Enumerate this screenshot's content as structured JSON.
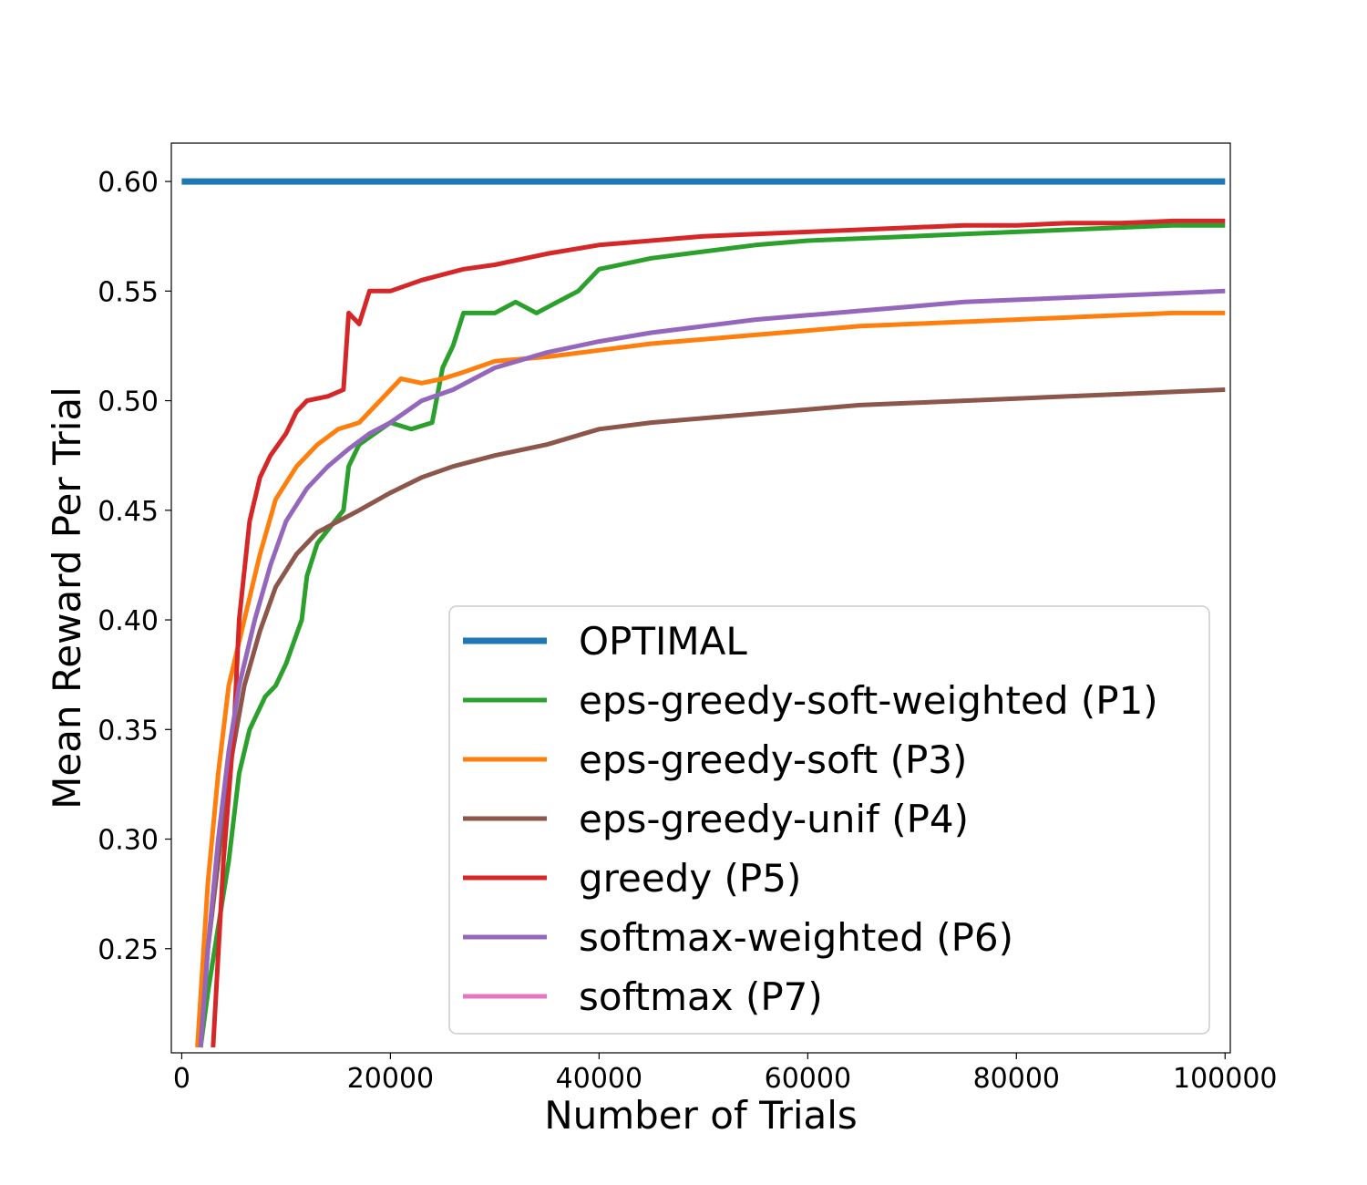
{
  "chart_data": {
    "type": "line",
    "title": "",
    "xlabel": "Number of Trials",
    "ylabel": "Mean Reward Per Trial",
    "xlim": [
      -1000,
      100500
    ],
    "ylim": [
      0.2025,
      0.6175
    ],
    "xticks": [
      0,
      20000,
      40000,
      60000,
      80000,
      100000
    ],
    "xtick_labels": [
      "0",
      "20000",
      "40000",
      "60000",
      "80000",
      "100000"
    ],
    "yticks": [
      0.25,
      0.3,
      0.35,
      0.4,
      0.45,
      0.5,
      0.55,
      0.6
    ],
    "ytick_labels": [
      "0.25",
      "0.30",
      "0.35",
      "0.40",
      "0.45",
      "0.50",
      "0.55",
      "0.60"
    ],
    "grid": false,
    "legend_position": "lower-right",
    "series": [
      {
        "name": "OPTIMAL",
        "color": "#1f77b4",
        "width": 7,
        "x": [
          0,
          100000
        ],
        "y": [
          0.6,
          0.6
        ]
      },
      {
        "name": "eps-greedy-soft-weighted (P1)",
        "color": "#2ca02c",
        "width": 5,
        "x": [
          1800,
          2500,
          3500,
          4500,
          5500,
          6500,
          8000,
          9000,
          10000,
          11500,
          12000,
          13000,
          15500,
          16000,
          17000,
          18500,
          20000,
          22000,
          24000,
          25000,
          26000,
          27000,
          28000,
          30000,
          32000,
          34000,
          36000,
          38000,
          39000,
          40000,
          45000,
          50000,
          55000,
          60000,
          65000,
          70000,
          75000,
          80000,
          85000,
          90000,
          95000,
          100000
        ],
        "y": [
          0.205,
          0.23,
          0.26,
          0.29,
          0.33,
          0.35,
          0.365,
          0.37,
          0.38,
          0.4,
          0.42,
          0.435,
          0.45,
          0.47,
          0.48,
          0.485,
          0.49,
          0.487,
          0.49,
          0.515,
          0.525,
          0.54,
          0.54,
          0.54,
          0.545,
          0.54,
          0.545,
          0.55,
          0.555,
          0.56,
          0.565,
          0.568,
          0.571,
          0.573,
          0.574,
          0.575,
          0.576,
          0.577,
          0.578,
          0.579,
          0.58,
          0.58
        ]
      },
      {
        "name": "eps-greedy-soft (P3)",
        "color": "#ff7f0e",
        "width": 5,
        "x": [
          1500,
          2500,
          3500,
          4500,
          6000,
          7500,
          9000,
          11000,
          13000,
          15000,
          17000,
          19000,
          21000,
          23000,
          25000,
          27000,
          30000,
          35000,
          40000,
          45000,
          50000,
          55000,
          60000,
          65000,
          70000,
          75000,
          80000,
          85000,
          90000,
          95000,
          100000
        ],
        "y": [
          0.205,
          0.28,
          0.33,
          0.37,
          0.4,
          0.43,
          0.455,
          0.47,
          0.48,
          0.487,
          0.49,
          0.5,
          0.51,
          0.508,
          0.51,
          0.513,
          0.518,
          0.52,
          0.523,
          0.526,
          0.528,
          0.53,
          0.532,
          0.534,
          0.535,
          0.536,
          0.537,
          0.538,
          0.539,
          0.54,
          0.54
        ]
      },
      {
        "name": "eps-greedy-unif (P4)",
        "color": "#8c564b",
        "width": 5,
        "x": [
          1800,
          2500,
          3500,
          4500,
          6000,
          7500,
          9000,
          11000,
          13000,
          15000,
          17000,
          20000,
          23000,
          26000,
          30000,
          35000,
          40000,
          45000,
          50000,
          55000,
          60000,
          65000,
          70000,
          75000,
          80000,
          85000,
          90000,
          95000,
          100000
        ],
        "y": [
          0.205,
          0.25,
          0.29,
          0.33,
          0.37,
          0.395,
          0.415,
          0.43,
          0.44,
          0.445,
          0.45,
          0.458,
          0.465,
          0.47,
          0.475,
          0.48,
          0.487,
          0.49,
          0.492,
          0.494,
          0.496,
          0.498,
          0.499,
          0.5,
          0.501,
          0.502,
          0.503,
          0.504,
          0.505
        ]
      },
      {
        "name": "greedy (P5)",
        "color": "#d62728",
        "width": 5,
        "x": [
          3000,
          4000,
          5000,
          5500,
          6500,
          7500,
          8500,
          10000,
          11000,
          12000,
          14000,
          15500,
          16000,
          17000,
          18000,
          20000,
          23000,
          27000,
          30000,
          35000,
          40000,
          45000,
          50000,
          55000,
          60000,
          65000,
          70000,
          75000,
          80000,
          85000,
          90000,
          95000,
          100000
        ],
        "y": [
          0.205,
          0.29,
          0.35,
          0.4,
          0.445,
          0.465,
          0.475,
          0.485,
          0.495,
          0.5,
          0.502,
          0.505,
          0.54,
          0.535,
          0.55,
          0.55,
          0.555,
          0.56,
          0.562,
          0.567,
          0.571,
          0.573,
          0.575,
          0.576,
          0.577,
          0.578,
          0.579,
          0.58,
          0.58,
          0.581,
          0.581,
          0.582,
          0.582
        ]
      },
      {
        "name": "softmax-weighted (P6)",
        "color": "#9467bd",
        "width": 5,
        "x": [
          1800,
          2500,
          3500,
          4500,
          5500,
          7000,
          8500,
          10000,
          12000,
          14000,
          16000,
          18000,
          20000,
          23000,
          26000,
          30000,
          35000,
          40000,
          45000,
          50000,
          55000,
          60000,
          65000,
          70000,
          75000,
          80000,
          85000,
          90000,
          95000,
          100000
        ],
        "y": [
          0.205,
          0.25,
          0.3,
          0.34,
          0.37,
          0.4,
          0.425,
          0.445,
          0.46,
          0.47,
          0.478,
          0.485,
          0.49,
          0.5,
          0.505,
          0.515,
          0.522,
          0.527,
          0.531,
          0.534,
          0.537,
          0.539,
          0.541,
          0.543,
          0.545,
          0.546,
          0.547,
          0.548,
          0.549,
          0.55
        ]
      },
      {
        "name": "softmax (P7)",
        "color": "#e377c2",
        "width": 5,
        "x": [],
        "y": []
      }
    ]
  }
}
